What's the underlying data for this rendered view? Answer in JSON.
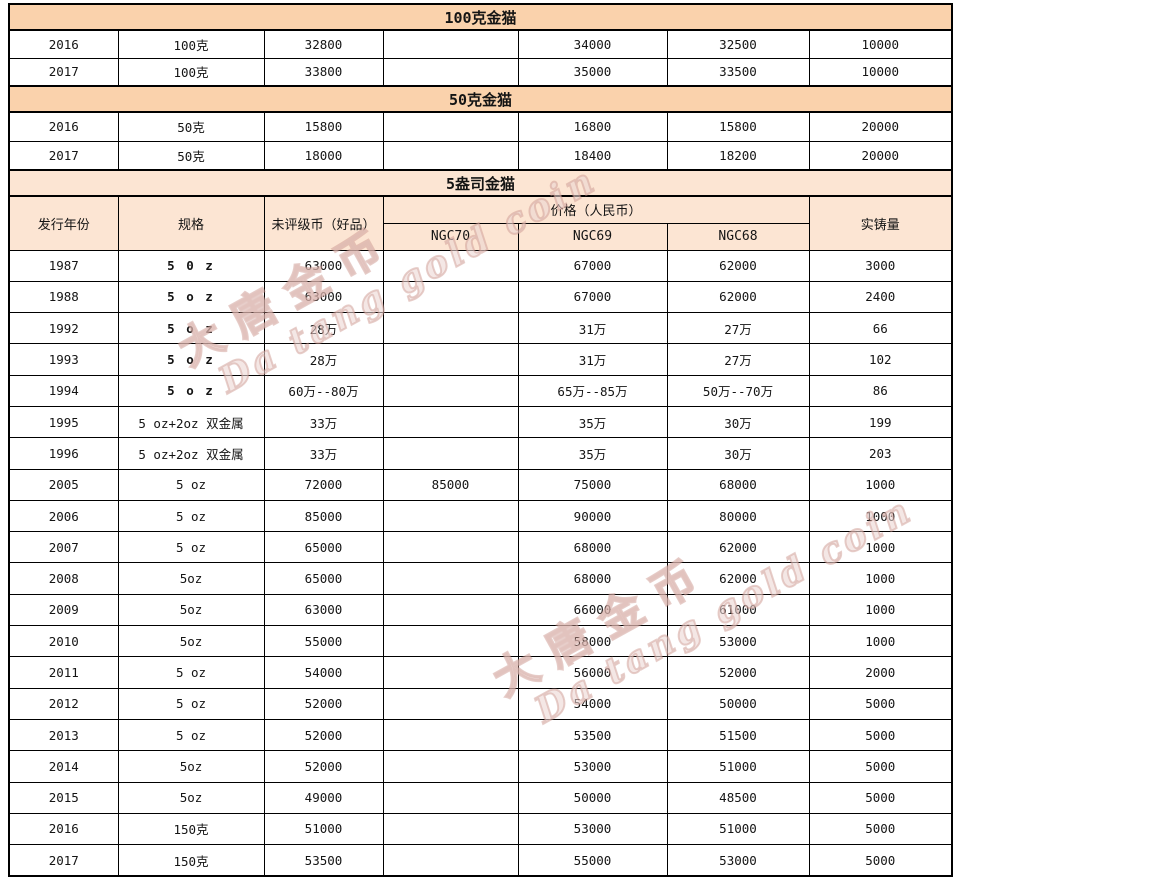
{
  "colors": {
    "band_dark": "#fad2ac",
    "band_light": "#fce5d3",
    "border": "#000000",
    "text": "#141414",
    "watermark_pink": "#cd968f"
  },
  "watermark": {
    "cn": "大唐金币",
    "en": "Da tang gold coin"
  },
  "table": {
    "sections": [
      {
        "id": "100g",
        "title": "100克金猫",
        "band": "dark",
        "row_class": "r-s1",
        "rows": [
          [
            "2016",
            "100克",
            "32800",
            "",
            "34000",
            "32500",
            "10000"
          ],
          [
            "2017",
            "100克",
            "33800",
            "",
            "35000",
            "33500",
            "10000"
          ]
        ]
      },
      {
        "id": "50g",
        "title": "50克金猫",
        "band": "dark",
        "row_class": "r-s2",
        "rows": [
          [
            "2016",
            "50克",
            "15800",
            "",
            "16800",
            "15800",
            "20000"
          ],
          [
            "2017",
            "50克",
            "18000",
            "",
            "18400",
            "18200",
            "20000"
          ]
        ]
      },
      {
        "id": "5oz",
        "title": "5盎司金猫",
        "band": "light",
        "row_class": "r-data",
        "columns": {
          "year": "发行年份",
          "spec": "规格",
          "ungraded": "未评级币（好品）",
          "price_group": "价格（人民币）",
          "grades": [
            "NGC70",
            "NGC69",
            "NGC68"
          ],
          "mintage": "实铸量"
        },
        "bold_spec_years": [
          "1987",
          "1988",
          "1992",
          "1993",
          "1994"
        ],
        "rows": [
          [
            "1987",
            "5 0 z",
            "63000",
            "",
            "67000",
            "62000",
            "3000"
          ],
          [
            "1988",
            "5 o z",
            "63000",
            "",
            "67000",
            "62000",
            "2400"
          ],
          [
            "1992",
            "5 o z",
            "28万",
            "",
            "31万",
            "27万",
            "66"
          ],
          [
            "1993",
            "5 o z",
            "28万",
            "",
            "31万",
            "27万",
            "102"
          ],
          [
            "1994",
            "5 o z",
            "60万--80万",
            "",
            "65万--85万",
            "50万--70万",
            "86"
          ],
          [
            "1995",
            "5 oz+2oz 双金属",
            "33万",
            "",
            "35万",
            "30万",
            "199"
          ],
          [
            "1996",
            "5 oz+2oz 双金属",
            "33万",
            "",
            "35万",
            "30万",
            "203"
          ],
          [
            "2005",
            "5 oz",
            "72000",
            "85000",
            "75000",
            "68000",
            "1000"
          ],
          [
            "2006",
            "5 oz",
            "85000",
            "",
            "90000",
            "80000",
            "1000"
          ],
          [
            "2007",
            "5 oz",
            "65000",
            "",
            "68000",
            "62000",
            "1000"
          ],
          [
            "2008",
            "5oz",
            "65000",
            "",
            "68000",
            "62000",
            "1000"
          ],
          [
            "2009",
            "5oz",
            "63000",
            "",
            "66000",
            "61000",
            "1000"
          ],
          [
            "2010",
            "5oz",
            "55000",
            "",
            "58000",
            "53000",
            "1000"
          ],
          [
            "2011",
            "5 oz",
            "54000",
            "",
            "56000",
            "52000",
            "2000"
          ],
          [
            "2012",
            "5 oz",
            "52000",
            "",
            "54000",
            "50000",
            "5000"
          ],
          [
            "2013",
            "5 oz",
            "52000",
            "",
            "53500",
            "51500",
            "5000"
          ],
          [
            "2014",
            "5oz",
            "52000",
            "",
            "53000",
            "51000",
            "5000"
          ],
          [
            "2015",
            "5oz",
            "49000",
            "",
            "50000",
            "48500",
            "5000"
          ],
          [
            "2016",
            "150克",
            "51000",
            "",
            "53000",
            "51000",
            "5000"
          ],
          [
            "2017",
            "150克",
            "53500",
            "",
            "55000",
            "53000",
            "5000"
          ]
        ]
      }
    ]
  }
}
